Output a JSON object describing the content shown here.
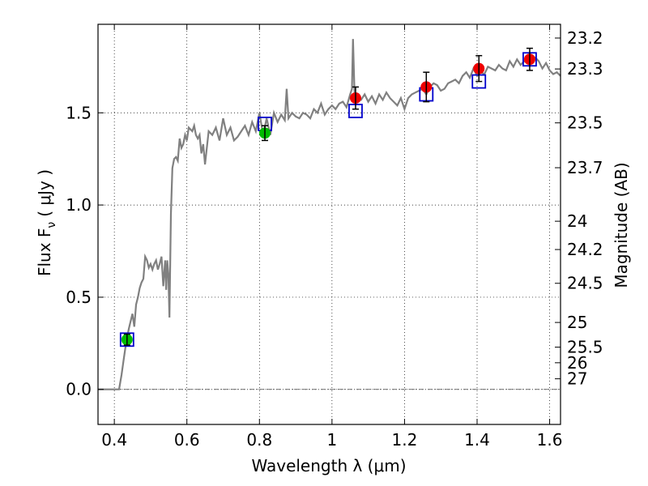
{
  "chart_data": {
    "type": "scatter",
    "xlabel": "Wavelength  λ (μm)",
    "ylabel": "Flux  F",
    "ylabel_sub": "ν",
    "ylabel_unit": "( μJy )",
    "y2label": "Magnitude (AB)",
    "xlim": [
      0.355,
      1.63
    ],
    "ylim": [
      -0.19,
      1.98
    ],
    "grid": true,
    "x_ticks": [
      {
        "value": 0.4,
        "label": "0.4"
      },
      {
        "value": 0.6,
        "label": "0.6"
      },
      {
        "value": 0.8,
        "label": "0.8"
      },
      {
        "value": 1.0,
        "label": "1"
      },
      {
        "value": 1.2,
        "label": "1.2"
      },
      {
        "value": 1.4,
        "label": "1.4"
      },
      {
        "value": 1.6,
        "label": "1.6"
      }
    ],
    "y_ticks": [
      {
        "value": 0.0,
        "label": "0.0"
      },
      {
        "value": 0.5,
        "label": "0.5"
      },
      {
        "value": 1.0,
        "label": "1.0"
      },
      {
        "value": 1.5,
        "label": "1.5"
      }
    ],
    "mag_ticks": [
      {
        "value": 23.2,
        "label": "23.2"
      },
      {
        "value": 23.3,
        "label": "23.3"
      },
      {
        "value": 23.5,
        "label": "23.5"
      },
      {
        "value": 23.7,
        "label": "23.7"
      },
      {
        "value": 24,
        "label": "24"
      },
      {
        "value": 24.2,
        "label": "24.2"
      },
      {
        "value": 24.5,
        "label": "24.5"
      },
      {
        "value": 25,
        "label": "25"
      },
      {
        "value": 25.5,
        "label": "25.5"
      },
      {
        "value": 26,
        "label": "26"
      },
      {
        "value": 27,
        "label": "27"
      }
    ],
    "colors": {
      "model": "#808080",
      "model_points": "#0000cc",
      "obs_a": "#00bb00",
      "obs_b": "#ee0000",
      "errorbar": "#000000"
    },
    "model_spectrum": {
      "x": [
        0.355,
        0.4,
        0.413,
        0.42,
        0.425,
        0.43,
        0.435,
        0.44,
        0.445,
        0.45,
        0.455,
        0.46,
        0.465,
        0.47,
        0.475,
        0.48,
        0.485,
        0.49,
        0.495,
        0.5,
        0.505,
        0.51,
        0.515,
        0.52,
        0.525,
        0.53,
        0.535,
        0.54,
        0.543,
        0.546,
        0.549,
        0.552,
        0.556,
        0.56,
        0.565,
        0.57,
        0.575,
        0.58,
        0.585,
        0.59,
        0.595,
        0.6,
        0.605,
        0.61,
        0.615,
        0.62,
        0.625,
        0.63,
        0.635,
        0.64,
        0.645,
        0.65,
        0.66,
        0.67,
        0.68,
        0.69,
        0.7,
        0.71,
        0.72,
        0.73,
        0.74,
        0.75,
        0.76,
        0.77,
        0.78,
        0.79,
        0.8,
        0.81,
        0.82,
        0.83,
        0.84,
        0.85,
        0.86,
        0.87,
        0.875,
        0.88,
        0.89,
        0.9,
        0.91,
        0.92,
        0.93,
        0.94,
        0.95,
        0.96,
        0.97,
        0.98,
        0.99,
        1.0,
        1.01,
        1.02,
        1.03,
        1.04,
        1.05,
        1.055,
        1.058,
        1.062,
        1.066,
        1.07,
        1.08,
        1.09,
        1.1,
        1.11,
        1.12,
        1.13,
        1.14,
        1.15,
        1.16,
        1.17,
        1.18,
        1.19,
        1.2,
        1.21,
        1.22,
        1.23,
        1.24,
        1.25,
        1.26,
        1.27,
        1.28,
        1.29,
        1.3,
        1.31,
        1.32,
        1.33,
        1.34,
        1.35,
        1.36,
        1.37,
        1.38,
        1.39,
        1.4,
        1.41,
        1.42,
        1.43,
        1.44,
        1.45,
        1.46,
        1.47,
        1.48,
        1.49,
        1.5,
        1.51,
        1.52,
        1.53,
        1.54,
        1.55,
        1.56,
        1.57,
        1.58,
        1.59,
        1.6,
        1.61,
        1.62,
        1.63
      ],
      "y": [
        0.0,
        0.0,
        0.0,
        0.08,
        0.15,
        0.22,
        0.28,
        0.33,
        0.37,
        0.41,
        0.34,
        0.46,
        0.5,
        0.55,
        0.58,
        0.6,
        0.72,
        0.7,
        0.66,
        0.68,
        0.65,
        0.68,
        0.7,
        0.65,
        0.68,
        0.72,
        0.56,
        0.7,
        0.54,
        0.7,
        0.62,
        0.39,
        0.95,
        1.2,
        1.25,
        1.26,
        1.24,
        1.36,
        1.31,
        1.33,
        1.38,
        1.35,
        1.42,
        1.41,
        1.4,
        1.43,
        1.38,
        1.36,
        1.38,
        1.28,
        1.33,
        1.22,
        1.4,
        1.38,
        1.42,
        1.35,
        1.47,
        1.38,
        1.42,
        1.35,
        1.37,
        1.4,
        1.43,
        1.38,
        1.45,
        1.4,
        1.5,
        1.38,
        1.47,
        1.38,
        1.5,
        1.45,
        1.49,
        1.46,
        1.63,
        1.47,
        1.5,
        1.48,
        1.47,
        1.5,
        1.49,
        1.47,
        1.52,
        1.5,
        1.55,
        1.49,
        1.52,
        1.54,
        1.52,
        1.55,
        1.56,
        1.53,
        1.6,
        1.63,
        1.9,
        1.62,
        1.56,
        1.58,
        1.57,
        1.6,
        1.56,
        1.59,
        1.55,
        1.6,
        1.57,
        1.61,
        1.58,
        1.56,
        1.54,
        1.58,
        1.52,
        1.58,
        1.6,
        1.61,
        1.62,
        1.63,
        1.6,
        1.64,
        1.66,
        1.65,
        1.62,
        1.63,
        1.66,
        1.67,
        1.68,
        1.66,
        1.7,
        1.72,
        1.69,
        1.74,
        1.7,
        1.72,
        1.71,
        1.75,
        1.74,
        1.73,
        1.76,
        1.74,
        1.73,
        1.78,
        1.75,
        1.79,
        1.76,
        1.78,
        1.77,
        1.79,
        1.8,
        1.78,
        1.74,
        1.77,
        1.73,
        1.71,
        1.72,
        1.7
      ]
    },
    "model_points": {
      "x": [
        0.435,
        0.815,
        1.065,
        1.26,
        1.405,
        1.545
      ],
      "y": [
        0.27,
        1.44,
        1.51,
        1.6,
        1.67,
        1.79
      ]
    },
    "observed": [
      {
        "x": 0.435,
        "y": 0.27,
        "err": 0.03,
        "band": "optical"
      },
      {
        "x": 0.815,
        "y": 1.39,
        "err": 0.04,
        "band": "optical"
      },
      {
        "x": 1.065,
        "y": 1.58,
        "err": 0.06,
        "band": "nir"
      },
      {
        "x": 1.26,
        "y": 1.64,
        "err": 0.08,
        "band": "nir"
      },
      {
        "x": 1.405,
        "y": 1.74,
        "err": 0.07,
        "band": "nir"
      },
      {
        "x": 1.545,
        "y": 1.79,
        "err": 0.06,
        "band": "nir"
      }
    ]
  }
}
